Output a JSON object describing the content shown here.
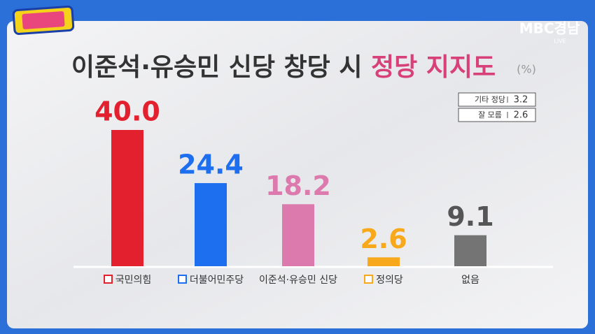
{
  "chart_data": {
    "type": "bar",
    "title_parts": [
      "이준석·유승민 신당 창당 시",
      "정당 지지도"
    ],
    "unit": "(%)",
    "categories": [
      "국민의힘",
      "더불어민주당",
      "이준석·유승민 신당",
      "정의당",
      "없음"
    ],
    "values": [
      40.0,
      24.4,
      18.2,
      2.6,
      9.1
    ],
    "value_labels": [
      "40.0",
      "24.4",
      "18.2",
      "2.6",
      "9.1"
    ],
    "colors": [
      "#e3202e",
      "#1e6ff0",
      "#dc79ad",
      "#f7a81b",
      "#747474"
    ],
    "side_table": [
      [
        "기타 정당",
        "3.2"
      ],
      [
        "잘 모름",
        "2.6"
      ]
    ]
  },
  "broadcaster": {
    "name": "MBC경남",
    "badge": "LIVE"
  }
}
